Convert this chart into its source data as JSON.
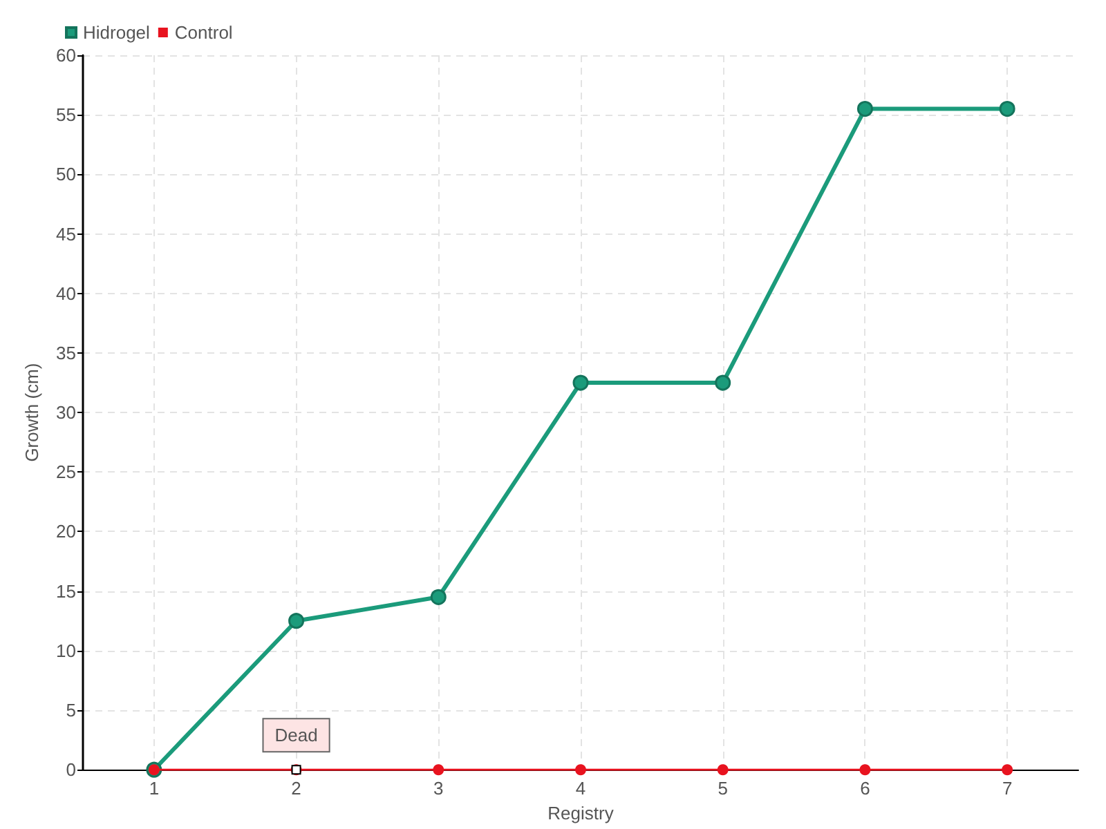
{
  "chart_data": {
    "type": "line",
    "xlabel": "Registry",
    "ylabel": "Growth (cm)",
    "x": [
      1,
      2,
      3,
      4,
      5,
      6,
      7
    ],
    "series": [
      {
        "name": "Hidrogel",
        "color": "#1b9b7b",
        "values": [
          0,
          12.5,
          14.5,
          32.5,
          32.5,
          55.5,
          55.5
        ]
      },
      {
        "name": "Control",
        "color": "#e8131f",
        "values": [
          0,
          0,
          0,
          0,
          0,
          0,
          0
        ]
      }
    ],
    "xlim": [
      0.5,
      7.5
    ],
    "xticks": [
      1,
      2,
      3,
      4,
      5,
      6,
      7
    ],
    "ylim": [
      0,
      60
    ],
    "yticks": [
      0,
      5,
      10,
      15,
      20,
      25,
      30,
      35,
      40,
      45,
      50,
      55,
      60
    ],
    "annotations": [
      {
        "text": "Dead",
        "x": 2,
        "y": 0
      }
    ],
    "grid": true,
    "legend": "top left",
    "marker": "circle",
    "line_style": "solid"
  }
}
